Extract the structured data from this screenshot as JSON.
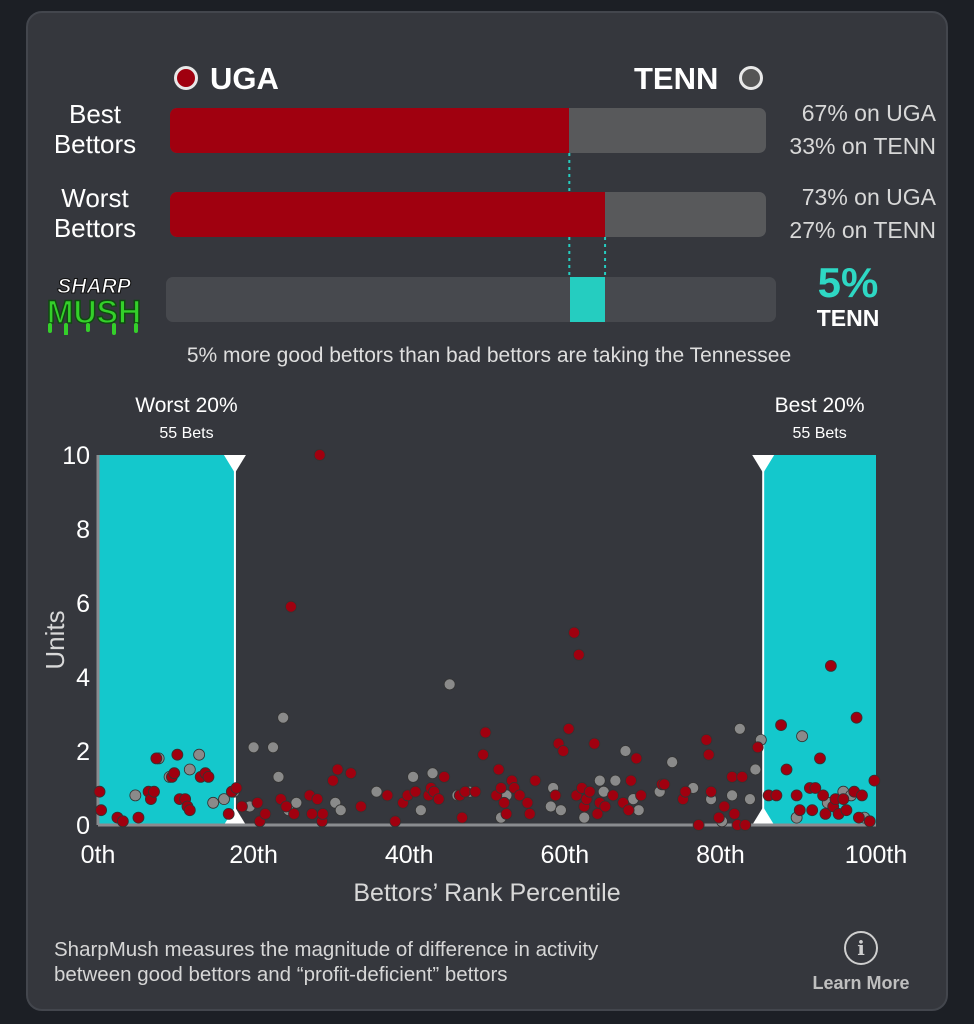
{
  "header": {
    "team_a": "UGA",
    "team_b": "TENN"
  },
  "rows": [
    {
      "label_line1": "Best",
      "label_line2": "Bettors",
      "uga_fraction": 0.67,
      "pct_a_text": "67% on UGA",
      "pct_b_text": "33% on TENN"
    },
    {
      "label_line1": "Worst",
      "label_line2": "Bettors",
      "uga_fraction": 0.73,
      "pct_a_text": "73% on UGA",
      "pct_b_text": "27% on TENN"
    }
  ],
  "sharpmush": {
    "logo_line1": "SHARP",
    "logo_line2": "MUSH",
    "value_text": "5%",
    "team_text": "TENN",
    "difference_fraction": 0.05,
    "summary": "5% more good bettors than bad bettors are taking the Tennessee"
  },
  "colors": {
    "uga": "#a0000f",
    "tenn": "#8a8a8a",
    "highlight": "#14c8cc",
    "accent_text": "#2ed8c4"
  },
  "chart_data": {
    "type": "scatter",
    "title": "",
    "xlabel": "Bettors’ Rank Percentile",
    "ylabel": "Units",
    "xlim": [
      0,
      100
    ],
    "ylim": [
      0,
      10
    ],
    "x_ticks": [
      {
        "value": 0,
        "label": "0th"
      },
      {
        "value": 20,
        "label": "20th"
      },
      {
        "value": 40,
        "label": "40th"
      },
      {
        "value": 60,
        "label": "60th"
      },
      {
        "value": 80,
        "label": "80th"
      },
      {
        "value": 100,
        "label": "100th"
      }
    ],
    "y_ticks": [
      0,
      2,
      4,
      6,
      8,
      10
    ],
    "regions": [
      {
        "name": "Worst 20%",
        "sublabel": "55 Bets",
        "x_start": 0,
        "x_end": 17.6
      },
      {
        "name": "Best 20%",
        "sublabel": "55 Bets",
        "x_start": 85.5,
        "x_end": 100
      }
    ],
    "series": [
      {
        "name": "UGA",
        "color": "#a0000f",
        "points": [
          [
            0.2,
            0.9
          ],
          [
            0.4,
            0.4
          ],
          [
            2.5,
            0.2
          ],
          [
            3.2,
            0.1
          ],
          [
            5.2,
            0.2
          ],
          [
            6.5,
            0.9
          ],
          [
            6.8,
            0.7
          ],
          [
            7.2,
            0.9
          ],
          [
            7.5,
            1.8
          ],
          [
            9.5,
            1.3
          ],
          [
            9.8,
            1.4
          ],
          [
            10.2,
            1.9
          ],
          [
            10.5,
            0.7
          ],
          [
            11.2,
            0.7
          ],
          [
            11.5,
            0.5
          ],
          [
            11.8,
            0.4
          ],
          [
            13.2,
            1.3
          ],
          [
            13.8,
            1.4
          ],
          [
            14.2,
            1.3
          ],
          [
            16.8,
            0.3
          ],
          [
            17.2,
            0.9
          ],
          [
            17.8,
            1.0
          ],
          [
            18.5,
            0.5
          ],
          [
            20.5,
            0.6
          ],
          [
            20.8,
            0.1
          ],
          [
            21.5,
            0.3
          ],
          [
            23.5,
            0.7
          ],
          [
            24.2,
            0.5
          ],
          [
            24.8,
            5.9
          ],
          [
            25.2,
            0.3
          ],
          [
            27.2,
            0.8
          ],
          [
            27.5,
            0.3
          ],
          [
            28.2,
            0.7
          ],
          [
            28.5,
            10.0
          ],
          [
            28.8,
            0.1
          ],
          [
            28.9,
            0.3
          ],
          [
            30.2,
            1.2
          ],
          [
            30.8,
            1.5
          ],
          [
            32.5,
            1.4
          ],
          [
            33.8,
            0.5
          ],
          [
            37.2,
            0.8
          ],
          [
            38.2,
            0.1
          ],
          [
            39.2,
            0.6
          ],
          [
            39.8,
            0.8
          ],
          [
            40.8,
            0.9
          ],
          [
            42.5,
            0.8
          ],
          [
            42.8,
            1.0
          ],
          [
            43.2,
            0.9
          ],
          [
            43.8,
            0.7
          ],
          [
            44.5,
            1.3
          ],
          [
            46.5,
            0.8
          ],
          [
            46.8,
            0.2
          ],
          [
            47.2,
            0.9
          ],
          [
            48.5,
            0.9
          ],
          [
            49.5,
            1.9
          ],
          [
            49.8,
            2.5
          ],
          [
            51.2,
            0.8
          ],
          [
            51.5,
            1.5
          ],
          [
            51.8,
            1.0
          ],
          [
            52.2,
            0.6
          ],
          [
            52.5,
            0.3
          ],
          [
            53.2,
            1.2
          ],
          [
            53.5,
            1.0
          ],
          [
            54.2,
            0.8
          ],
          [
            55.2,
            0.6
          ],
          [
            55.5,
            0.3
          ],
          [
            56.2,
            1.2
          ],
          [
            58.8,
            0.8
          ],
          [
            59.2,
            2.2
          ],
          [
            59.8,
            2.0
          ],
          [
            60.5,
            2.6
          ],
          [
            61.2,
            5.2
          ],
          [
            61.5,
            0.8
          ],
          [
            61.8,
            4.6
          ],
          [
            62.2,
            1.0
          ],
          [
            62.5,
            0.5
          ],
          [
            62.8,
            0.7
          ],
          [
            63.2,
            0.9
          ],
          [
            63.8,
            2.2
          ],
          [
            64.2,
            0.3
          ],
          [
            64.5,
            0.6
          ],
          [
            65.2,
            0.5
          ],
          [
            66.2,
            0.8
          ],
          [
            67.5,
            0.6
          ],
          [
            68.2,
            0.4
          ],
          [
            68.5,
            1.2
          ],
          [
            69.2,
            1.8
          ],
          [
            69.8,
            0.8
          ],
          [
            72.5,
            1.1
          ],
          [
            72.8,
            1.1
          ],
          [
            75.2,
            0.7
          ],
          [
            75.5,
            0.9
          ],
          [
            77.2,
            0.0
          ],
          [
            78.2,
            2.3
          ],
          [
            78.5,
            1.9
          ],
          [
            78.8,
            0.9
          ],
          [
            79.8,
            0.2
          ],
          [
            80.5,
            0.5
          ],
          [
            81.5,
            1.3
          ],
          [
            81.8,
            0.3
          ],
          [
            82.2,
            0.0
          ],
          [
            82.8,
            1.3
          ],
          [
            83.2,
            0.0
          ],
          [
            84.8,
            2.1
          ],
          [
            86.2,
            0.8
          ],
          [
            87.2,
            0.8
          ],
          [
            87.8,
            2.7
          ],
          [
            88.5,
            1.5
          ],
          [
            89.8,
            0.8
          ],
          [
            90.2,
            0.4
          ],
          [
            91.5,
            1.0
          ],
          [
            91.8,
            0.4
          ],
          [
            92.2,
            1.0
          ],
          [
            92.8,
            1.8
          ],
          [
            93.2,
            0.8
          ],
          [
            93.5,
            0.3
          ],
          [
            94.2,
            4.3
          ],
          [
            94.5,
            0.5
          ],
          [
            94.8,
            0.7
          ],
          [
            95.2,
            0.3
          ],
          [
            95.8,
            0.7
          ],
          [
            96.2,
            0.4
          ],
          [
            97.2,
            0.9
          ],
          [
            97.5,
            2.9
          ],
          [
            97.8,
            0.2
          ],
          [
            98.2,
            0.8
          ],
          [
            99.2,
            0.1
          ],
          [
            99.8,
            1.2
          ]
        ]
      },
      {
        "name": "TENN",
        "color": "#8a8a8a",
        "points": [
          [
            4.8,
            0.8
          ],
          [
            7.8,
            1.8
          ],
          [
            9.2,
            1.3
          ],
          [
            11.8,
            1.5
          ],
          [
            13.0,
            1.9
          ],
          [
            14.8,
            0.6
          ],
          [
            16.2,
            0.7
          ],
          [
            17.5,
            0.9
          ],
          [
            19.5,
            0.5
          ],
          [
            20.0,
            2.1
          ],
          [
            22.5,
            2.1
          ],
          [
            23.2,
            1.3
          ],
          [
            23.8,
            2.9
          ],
          [
            24.5,
            0.4
          ],
          [
            25.5,
            0.6
          ],
          [
            30.5,
            0.6
          ],
          [
            31.2,
            0.4
          ],
          [
            35.8,
            0.9
          ],
          [
            40.5,
            1.3
          ],
          [
            41.5,
            0.4
          ],
          [
            43.0,
            1.4
          ],
          [
            45.2,
            3.8
          ],
          [
            46.2,
            0.8
          ],
          [
            47.8,
            0.9
          ],
          [
            51.8,
            0.2
          ],
          [
            52.5,
            0.8
          ],
          [
            58.5,
            1.0
          ],
          [
            58.2,
            0.5
          ],
          [
            59.5,
            0.4
          ],
          [
            62.5,
            0.2
          ],
          [
            64.5,
            1.2
          ],
          [
            65.0,
            0.9
          ],
          [
            66.5,
            1.2
          ],
          [
            67.8,
            2.0
          ],
          [
            68.8,
            0.7
          ],
          [
            69.5,
            0.4
          ],
          [
            72.2,
            0.9
          ],
          [
            73.8,
            1.7
          ],
          [
            76.5,
            1.0
          ],
          [
            78.8,
            0.7
          ],
          [
            80.2,
            0.1
          ],
          [
            81.5,
            0.8
          ],
          [
            82.5,
            2.6
          ],
          [
            83.8,
            0.7
          ],
          [
            84.5,
            1.5
          ],
          [
            85.2,
            2.3
          ],
          [
            89.8,
            0.2
          ],
          [
            90.5,
            2.4
          ],
          [
            93.8,
            0.6
          ],
          [
            95.8,
            0.9
          ],
          [
            96.8,
            0.8
          ],
          [
            98.5,
            0.2
          ]
        ]
      }
    ]
  },
  "footer": {
    "note_line1": "SharpMush measures the magnitude of difference in activity",
    "note_line2": "between good bettors and “profit-deficient” bettors",
    "learn_more": "Learn More",
    "info_glyph": "i"
  }
}
